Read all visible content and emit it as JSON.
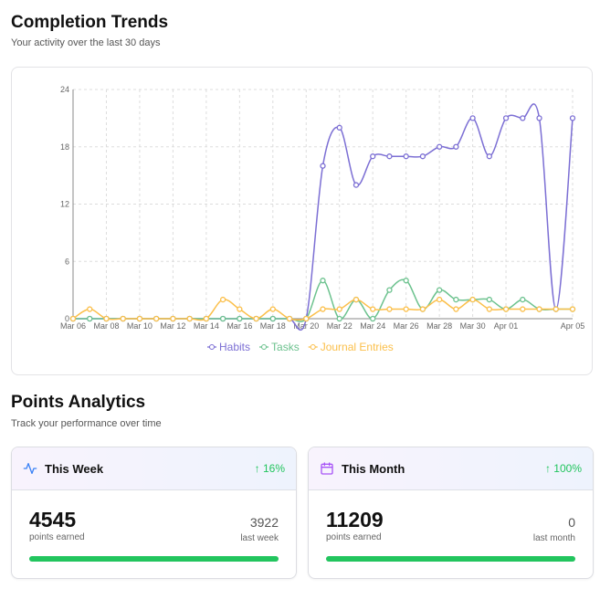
{
  "trends": {
    "title": "Completion Trends",
    "subtitle": "Your activity over the last 30 days"
  },
  "chart_data": {
    "type": "line",
    "x": [
      "Mar 06",
      "Mar 07",
      "Mar 08",
      "Mar 09",
      "Mar 10",
      "Mar 11",
      "Mar 12",
      "Mar 13",
      "Mar 14",
      "Mar 15",
      "Mar 16",
      "Mar 17",
      "Mar 18",
      "Mar 19",
      "Mar 20",
      "Mar 21",
      "Mar 22",
      "Mar 23",
      "Mar 24",
      "Mar 25",
      "Mar 26",
      "Mar 27",
      "Mar 28",
      "Mar 29",
      "Mar 30",
      "Mar 31",
      "Apr 01",
      "Apr 02",
      "Apr 03",
      "Apr 04",
      "Apr 05"
    ],
    "xticks": [
      "Mar 06",
      "Mar 08",
      "Mar 10",
      "Mar 12",
      "Mar 14",
      "Mar 16",
      "Mar 18",
      "Mar 20",
      "Mar 22",
      "Mar 24",
      "Mar 26",
      "Mar 28",
      "Mar 30",
      "Apr 01",
      "Apr 05"
    ],
    "yticks": [
      0,
      6,
      12,
      18,
      24
    ],
    "ylim": [
      0,
      24
    ],
    "grid": true,
    "legend": "bottom",
    "series": [
      {
        "name": "Habits",
        "color": "#7c6fd4",
        "values": [
          0,
          0,
          0,
          0,
          0,
          0,
          0,
          0,
          0,
          0,
          0,
          0,
          0,
          0,
          0,
          16,
          20,
          14,
          17,
          17,
          17,
          17,
          18,
          18,
          21,
          17,
          21,
          21,
          21,
          1,
          21
        ]
      },
      {
        "name": "Tasks",
        "color": "#6cc28e",
        "values": [
          0,
          0,
          0,
          0,
          0,
          0,
          0,
          0,
          0,
          0,
          0,
          0,
          0,
          0,
          0,
          4,
          0,
          2,
          0,
          3,
          4,
          1,
          3,
          2,
          2,
          2,
          1,
          2,
          1,
          1,
          1
        ]
      },
      {
        "name": "Journal Entries",
        "color": "#fbbf4a",
        "values": [
          0,
          1,
          0,
          0,
          0,
          0,
          0,
          0,
          0,
          2,
          1,
          0,
          1,
          0,
          0,
          1,
          1,
          2,
          1,
          1,
          1,
          1,
          2,
          1,
          2,
          1,
          1,
          1,
          1,
          1,
          1
        ]
      }
    ]
  },
  "points": {
    "title": "Points Analytics",
    "subtitle": "Track your performance over time",
    "cards": [
      {
        "title": "This Week",
        "icon": "activity-icon",
        "change": "↑ 16%",
        "value": "4545",
        "value_label": "points earned",
        "previous": "3922",
        "previous_label": "last week",
        "progress": 100
      },
      {
        "title": "This Month",
        "icon": "calendar-icon",
        "change": "↑ 100%",
        "value": "11209",
        "value_label": "points earned",
        "previous": "0",
        "previous_label": "last month",
        "progress": 100
      }
    ]
  }
}
